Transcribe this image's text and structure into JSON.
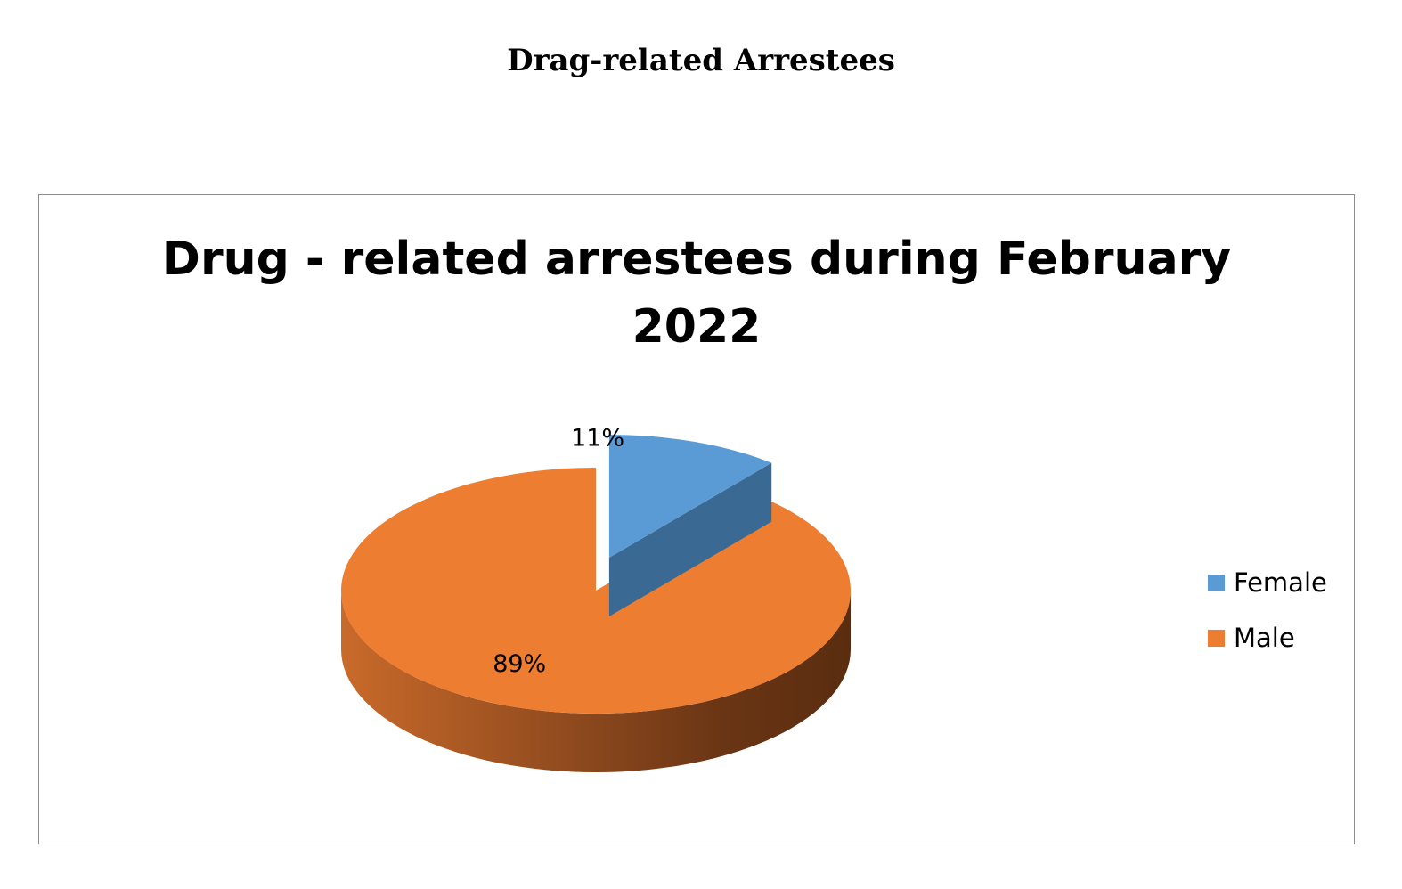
{
  "page": {
    "heading": "Drag-related Arrestees"
  },
  "chart_data": {
    "type": "pie",
    "title_lines": [
      "Drug - related arrestees during February",
      "2022"
    ],
    "slices": [
      {
        "label": "Female",
        "value": 11,
        "display": "11%",
        "color": "#5b9bd5",
        "side_color": "#3a6a94",
        "exploded": true
      },
      {
        "label": "Male",
        "value": 89,
        "display": "89%",
        "color": "#ed7d31",
        "side_color": "#8a4a1c",
        "exploded": false
      }
    ],
    "legend": {
      "position": "right",
      "entries": [
        "Female",
        "Male"
      ]
    }
  }
}
